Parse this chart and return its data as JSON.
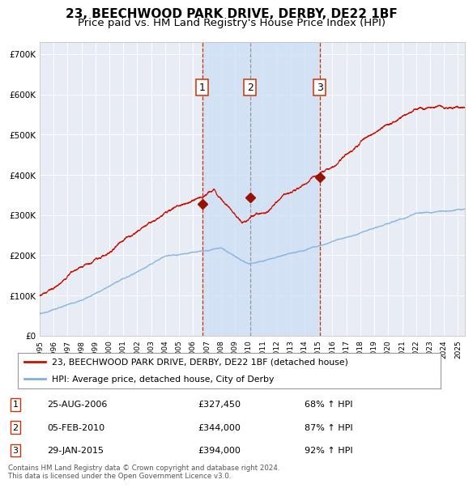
{
  "title": "23, BEECHWOOD PARK DRIVE, DERBY, DE22 1BF",
  "subtitle": "Price paid vs. HM Land Registry's House Price Index (HPI)",
  "title_fontsize": 11,
  "subtitle_fontsize": 9.5,
  "background_color": "#ffffff",
  "plot_bg_color": "#e8edf5",
  "grid_color": "#ffffff",
  "ylim": [
    0,
    730000
  ],
  "yticks": [
    0,
    100000,
    200000,
    300000,
    400000,
    500000,
    600000,
    700000
  ],
  "ytick_labels": [
    "£0",
    "£100K",
    "£200K",
    "£300K",
    "£400K",
    "£500K",
    "£600K",
    "£700K"
  ],
  "hpi_line_color": "#7fb0e0",
  "price_line_color": "#cc1100",
  "sale_marker_color": "#991100",
  "vline_color_red": "#cc3300",
  "vline_color_gray": "#999999",
  "shade_color": "#ccddf5",
  "sales": [
    {
      "date_num": 2006.65,
      "price": 327450,
      "label": "1"
    },
    {
      "date_num": 2010.09,
      "price": 344000,
      "label": "2"
    },
    {
      "date_num": 2015.08,
      "price": 394000,
      "label": "3"
    }
  ],
  "legend_entries": [
    {
      "label": "23, BEECHWOOD PARK DRIVE, DERBY, DE22 1BF (detached house)",
      "color": "#cc1100"
    },
    {
      "label": "HPI: Average price, detached house, City of Derby",
      "color": "#7fb0e0"
    }
  ],
  "table_rows": [
    {
      "num": "1",
      "date": "25-AUG-2006",
      "price": "£327,450",
      "pct": "68% ↑ HPI"
    },
    {
      "num": "2",
      "date": "05-FEB-2010",
      "price": "£344,000",
      "pct": "87% ↑ HPI"
    },
    {
      "num": "3",
      "date": "29-JAN-2015",
      "price": "£394,000",
      "pct": "92% ↑ HPI"
    }
  ],
  "footnote": "Contains HM Land Registry data © Crown copyright and database right 2024.\nThis data is licensed under the Open Government Licence v3.0.",
  "xmin": 1995.0,
  "xmax": 2025.5
}
